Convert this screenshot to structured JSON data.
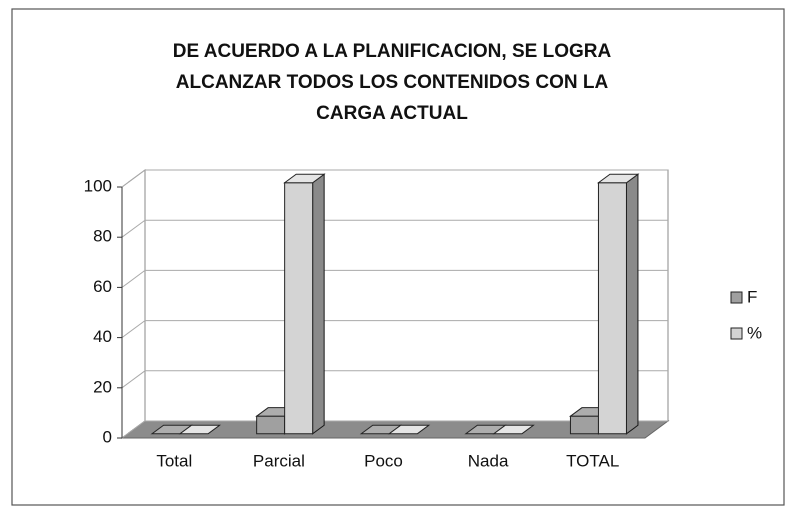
{
  "chart_data": {
    "type": "bar3d",
    "title": [
      "DE ACUERDO A LA PLANIFICACION, SE LOGRA",
      "ALCANZAR TODOS LOS CONTENIDOS CON LA",
      "CARGA ACTUAL"
    ],
    "categories": [
      "Total",
      "Parcial",
      "Poco",
      "Nada",
      "TOTAL"
    ],
    "series": [
      {
        "name": "F",
        "color": "#a0a0a0",
        "values": [
          0,
          7,
          0,
          0,
          7
        ]
      },
      {
        "name": "%",
        "color": "#d4d4d4",
        "values": [
          0,
          100,
          0,
          0,
          100
        ]
      }
    ],
    "ylim": [
      0,
      100
    ],
    "yticks": [
      0,
      20,
      40,
      60,
      80,
      100
    ],
    "grid": true,
    "legend": "right"
  }
}
